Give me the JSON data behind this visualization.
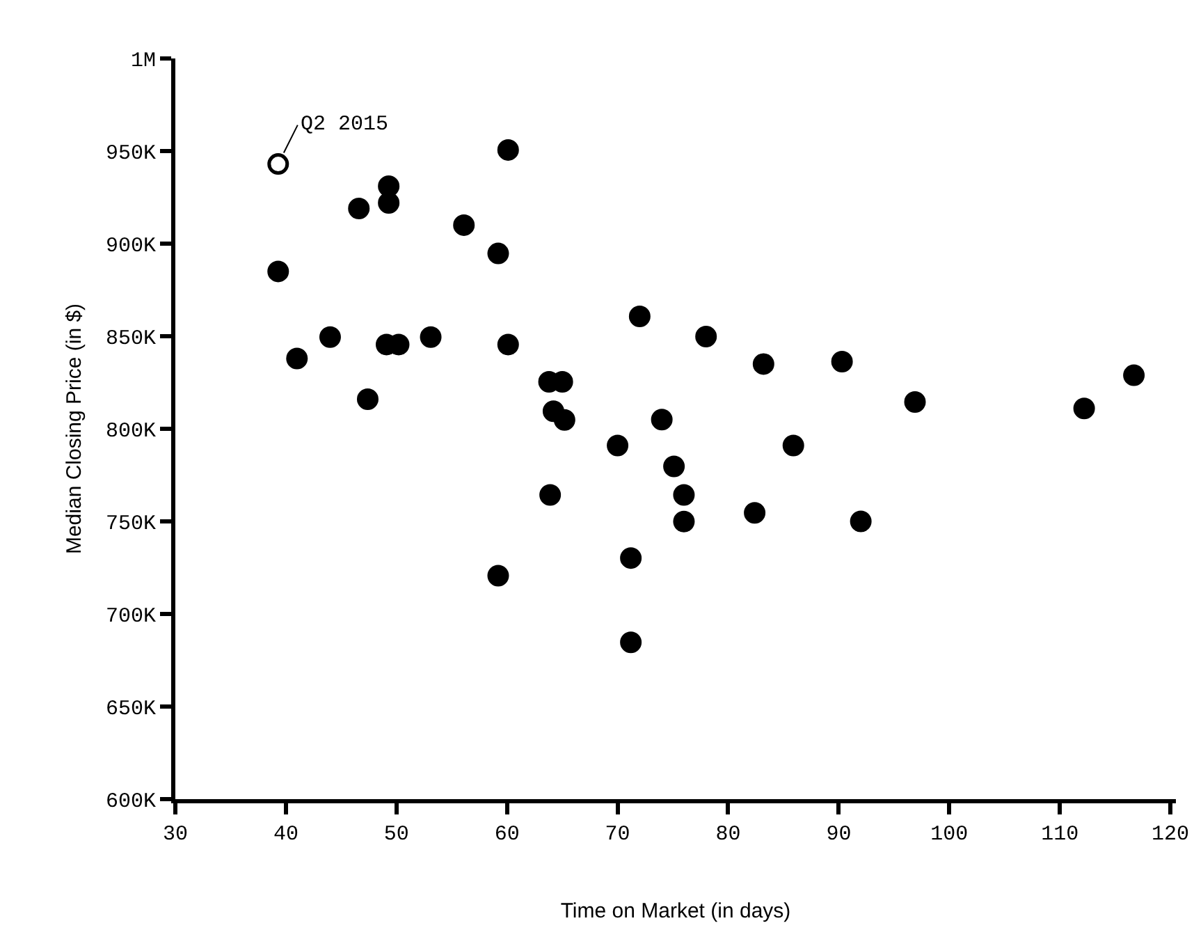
{
  "chart_data": {
    "type": "scatter",
    "xlabel": "Time on Market (in days)",
    "ylabel": "Median Closing Price (in $)",
    "xlim": [
      30,
      120.5
    ],
    "xticks": [
      30,
      40,
      50,
      60,
      70,
      80,
      90,
      100,
      110,
      120
    ],
    "ylim": [
      600000,
      1000000
    ],
    "yticks": [
      {
        "value": 600000,
        "label": "600K"
      },
      {
        "value": 650000,
        "label": "650K"
      },
      {
        "value": 700000,
        "label": "700K"
      },
      {
        "value": 750000,
        "label": "750K"
      },
      {
        "value": 800000,
        "label": "800K"
      },
      {
        "value": 850000,
        "label": "850K"
      },
      {
        "value": 900000,
        "label": "900K"
      },
      {
        "value": 950000,
        "label": "950K"
      },
      {
        "value": 1000000,
        "label": "1M"
      }
    ],
    "grid": false,
    "marker": "circle",
    "annotations": [
      {
        "text": "Q2 2015",
        "x": 39.3,
        "y": 943000
      }
    ],
    "series": [
      {
        "color": "#000000",
        "x": [
          60.1,
          49.3,
          46.6,
          49.3,
          56.1,
          59.2,
          39.3,
          41.0,
          44.0,
          49.1,
          50.2,
          53.1,
          60.1,
          47.4,
          63.8,
          65.0,
          64.2,
          65.2,
          63.9,
          72.0,
          78.0,
          83.2,
          90.3,
          96.9,
          112.2,
          116.7,
          70.0,
          74.0,
          85.9,
          75.1,
          76.0,
          76.0,
          82.4,
          92.0,
          71.2,
          71.2,
          59.2
        ],
        "values": [
          950600,
          931000,
          919000,
          922000,
          910000,
          894700,
          885000,
          838000,
          849500,
          845500,
          845500,
          849500,
          845500,
          816000,
          825400,
          825400,
          809500,
          804800,
          764300,
          860700,
          849800,
          835000,
          836300,
          814500,
          811000,
          828900,
          791000,
          805000,
          791000,
          779700,
          764300,
          749900,
          754600,
          750000,
          730200,
          684700,
          720700
        ]
      },
      {
        "color": "#ffffff",
        "x": [
          39.3
        ],
        "values": [
          943000
        ]
      }
    ]
  }
}
